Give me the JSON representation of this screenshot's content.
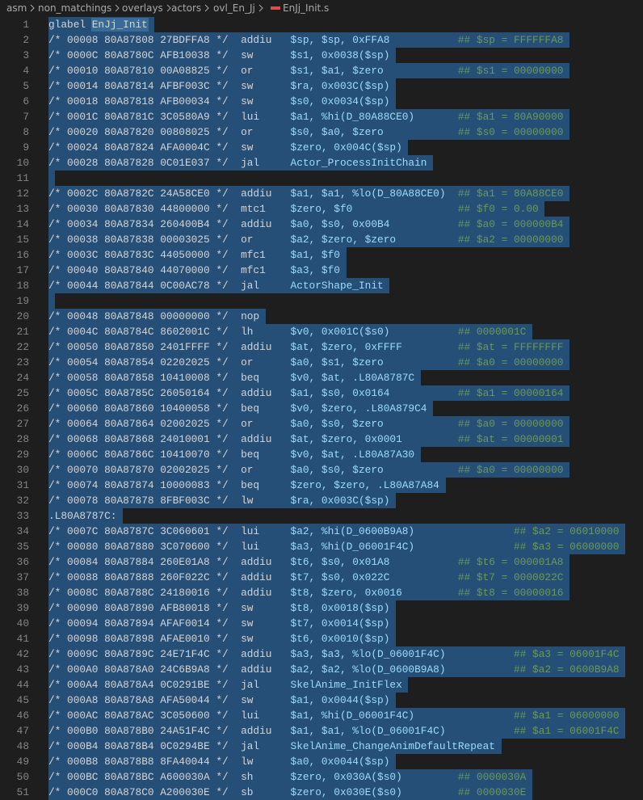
{
  "breadcrumb": [
    "asm",
    "non_matchings",
    "overlays",
    "actors",
    "ovl_En_Jj",
    "EnJj_Init.s"
  ],
  "lines": [
    {
      "number": 1,
      "directive": "glabel",
      "symbol": "EnJj_Init"
    },
    {
      "number": 2,
      "addr": "/* 00008 80A87808 27BDFFA8 */",
      "op": "addiu",
      "args": "$sp, $sp, 0xFFA8",
      "comment": "## $sp = FFFFFFA8"
    },
    {
      "number": 3,
      "addr": "/* 0000C 80A8780C AFB10038 */",
      "op": "sw",
      "args": "$s1, 0x0038($sp)"
    },
    {
      "number": 4,
      "addr": "/* 00010 80A87810 00A08825 */",
      "op": "or",
      "args": "$s1, $a1, $zero",
      "comment": "## $s1 = 00000000"
    },
    {
      "number": 5,
      "addr": "/* 00014 80A87814 AFBF003C */",
      "op": "sw",
      "args": "$ra, 0x003C($sp)"
    },
    {
      "number": 6,
      "addr": "/* 00018 80A87818 AFB00034 */",
      "op": "sw",
      "args": "$s0, 0x0034($sp)"
    },
    {
      "number": 7,
      "addr": "/* 0001C 80A8781C 3C0580A9 */",
      "op": "lui",
      "args": "$a1, %hi(D_80A88CE0)",
      "comment": "## $a1 = 80A90000"
    },
    {
      "number": 8,
      "addr": "/* 00020 80A87820 00808025 */",
      "op": "or",
      "args": "$s0, $a0, $zero",
      "comment": "## $s0 = 00000000"
    },
    {
      "number": 9,
      "addr": "/* 00024 80A87824 AFA0004C */",
      "op": "sw",
      "args": "$zero, 0x004C($sp)"
    },
    {
      "number": 10,
      "addr": "/* 00028 80A87828 0C01E037 */",
      "op": "jal",
      "args": "Actor_ProcessInitChain"
    },
    {
      "number": 11
    },
    {
      "number": 12,
      "addr": "/* 0002C 80A8782C 24A58CE0 */",
      "op": "addiu",
      "args": "$a1, $a1, %lo(D_80A88CE0)",
      "comment": "## $a1 = 80A88CE0"
    },
    {
      "number": 13,
      "addr": "/* 00030 80A87830 44800000 */",
      "op": "mtc1",
      "args": "$zero, $f0",
      "comment": "## $f0 = 0.00"
    },
    {
      "number": 14,
      "addr": "/* 00034 80A87834 260400B4 */",
      "op": "addiu",
      "args": "$a0, $s0, 0x00B4",
      "comment": "## $a0 = 000000B4"
    },
    {
      "number": 15,
      "addr": "/* 00038 80A87838 00003025 */",
      "op": "or",
      "args": "$a2, $zero, $zero",
      "comment": "## $a2 = 00000000"
    },
    {
      "number": 16,
      "addr": "/* 0003C 80A8783C 44050000 */",
      "op": "mfc1",
      "args": "$a1, $f0"
    },
    {
      "number": 17,
      "addr": "/* 00040 80A87840 44070000 */",
      "op": "mfc1",
      "args": "$a3, $f0"
    },
    {
      "number": 18,
      "addr": "/* 00044 80A87844 0C00AC78 */",
      "op": "jal",
      "args": "ActorShape_Init"
    },
    {
      "number": 19
    },
    {
      "number": 20,
      "addr": "/* 00048 80A87848 00000000 */",
      "op": "nop"
    },
    {
      "number": 21,
      "addr": "/* 0004C 80A8784C 8602001C */",
      "op": "lh",
      "args": "$v0, 0x001C($s0)",
      "comment": "## 0000001C"
    },
    {
      "number": 22,
      "addr": "/* 00050 80A87850 2401FFFF */",
      "op": "addiu",
      "args": "$at, $zero, 0xFFFF",
      "comment": "## $at = FFFFFFFF"
    },
    {
      "number": 23,
      "addr": "/* 00054 80A87854 02202025 */",
      "op": "or",
      "args": "$a0, $s1, $zero",
      "comment": "## $a0 = 00000000"
    },
    {
      "number": 24,
      "addr": "/* 00058 80A87858 10410008 */",
      "op": "beq",
      "args": "$v0, $at, .L80A8787C"
    },
    {
      "number": 25,
      "addr": "/* 0005C 80A8785C 26050164 */",
      "op": "addiu",
      "args": "$a1, $s0, 0x0164",
      "comment": "## $a1 = 00000164"
    },
    {
      "number": 26,
      "addr": "/* 00060 80A87860 10400058 */",
      "op": "beq",
      "args": "$v0, $zero, .L80A879C4"
    },
    {
      "number": 27,
      "addr": "/* 00064 80A87864 02002025 */",
      "op": "or",
      "args": "$a0, $s0, $zero",
      "comment": "## $a0 = 00000000"
    },
    {
      "number": 28,
      "addr": "/* 00068 80A87868 24010001 */",
      "op": "addiu",
      "args": "$at, $zero, 0x0001",
      "comment": "## $at = 00000001"
    },
    {
      "number": 29,
      "addr": "/* 0006C 80A8786C 10410070 */",
      "op": "beq",
      "args": "$v0, $at, .L80A87A30"
    },
    {
      "number": 30,
      "addr": "/* 00070 80A87870 02002025 */",
      "op": "or",
      "args": "$a0, $s0, $zero",
      "comment": "## $a0 = 00000000"
    },
    {
      "number": 31,
      "addr": "/* 00074 80A87874 10000083 */",
      "op": "beq",
      "args": "$zero, $zero, .L80A87A84"
    },
    {
      "number": 32,
      "addr": "/* 00078 80A87878 8FBF003C */",
      "op": "lw",
      "args": "$ra, 0x003C($sp)"
    },
    {
      "number": 33,
      "label": ".L80A8787C:"
    },
    {
      "number": 34,
      "addr": "/* 0007C 80A8787C 3C060601 */",
      "op": "lui",
      "args": "$a2, %hi(D_0600B9A8)",
      "comment": "## $a2 = 06010000"
    },
    {
      "number": 35,
      "addr": "/* 00080 80A87880 3C070600 */",
      "op": "lui",
      "args": "$a3, %hi(D_06001F4C)",
      "comment": "## $a3 = 06000000"
    },
    {
      "number": 36,
      "addr": "/* 00084 80A87884 260E01A8 */",
      "op": "addiu",
      "args": "$t6, $s0, 0x01A8",
      "comment": "## $t6 = 000001A8"
    },
    {
      "number": 37,
      "addr": "/* 00088 80A87888 260F022C */",
      "op": "addiu",
      "args": "$t7, $s0, 0x022C",
      "comment": "## $t7 = 0000022C"
    },
    {
      "number": 38,
      "addr": "/* 0008C 80A8788C 24180016 */",
      "op": "addiu",
      "args": "$t8, $zero, 0x0016",
      "comment": "## $t8 = 00000016"
    },
    {
      "number": 39,
      "addr": "/* 00090 80A87890 AFB80018 */",
      "op": "sw",
      "args": "$t8, 0x0018($sp)"
    },
    {
      "number": 40,
      "addr": "/* 00094 80A87894 AFAF0014 */",
      "op": "sw",
      "args": "$t7, 0x0014($sp)"
    },
    {
      "number": 41,
      "addr": "/* 00098 80A87898 AFAE0010 */",
      "op": "sw",
      "args": "$t6, 0x0010($sp)"
    },
    {
      "number": 42,
      "addr": "/* 0009C 80A8789C 24E71F4C */",
      "op": "addiu",
      "args": "$a3, $a3, %lo(D_06001F4C)",
      "comment": "## $a3 = 06001F4C"
    },
    {
      "number": 43,
      "addr": "/* 000A0 80A878A0 24C6B9A8 */",
      "op": "addiu",
      "args": "$a2, $a2, %lo(D_0600B9A8)",
      "comment": "## $a2 = 0600B9A8"
    },
    {
      "number": 44,
      "addr": "/* 000A4 80A878A4 0C0291BE */",
      "op": "jal",
      "args": "SkelAnime_InitFlex"
    },
    {
      "number": 45,
      "addr": "/* 000A8 80A878A8 AFA50044 */",
      "op": "sw",
      "args": "$a1, 0x0044($sp)"
    },
    {
      "number": 46,
      "addr": "/* 000AC 80A878AC 3C050600 */",
      "op": "lui",
      "args": "$a1, %hi(D_06001F4C)",
      "comment": "## $a1 = 06000000"
    },
    {
      "number": 47,
      "addr": "/* 000B0 80A878B0 24A51F4C */",
      "op": "addiu",
      "args": "$a1, $a1, %lo(D_06001F4C)",
      "comment": "## $a1 = 06001F4C"
    },
    {
      "number": 48,
      "addr": "/* 000B4 80A878B4 0C0294BE */",
      "op": "jal",
      "args": "SkelAnime_ChangeAnimDefaultRepeat"
    },
    {
      "number": 49,
      "addr": "/* 000B8 80A878B8 8FA40044 */",
      "op": "lw",
      "args": "$a0, 0x0044($sp)"
    },
    {
      "number": 50,
      "addr": "/* 000BC 80A878BC A600030A */",
      "op": "sh",
      "args": "$zero, 0x030A($s0)",
      "comment": "## 0000030A"
    },
    {
      "number": 51,
      "addr": "/* 000C0 80A878C0 A200030E */",
      "op": "sb",
      "args": "$zero, 0x030E($s0)",
      "comment": "## 0000030E"
    }
  ]
}
